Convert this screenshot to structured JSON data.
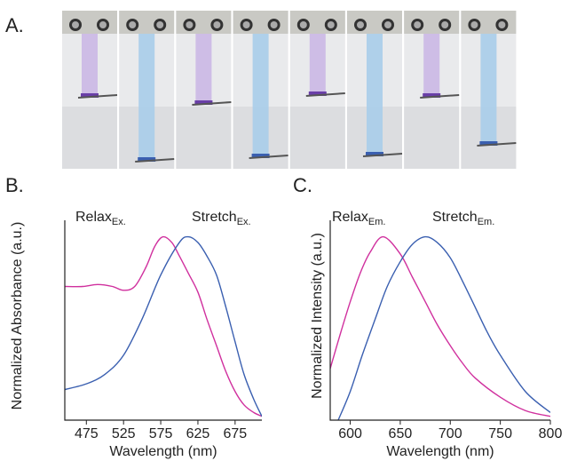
{
  "panel_a": {
    "label": "A."
  },
  "chart_data": [
    {
      "type": "line",
      "panel_label": "B.",
      "x_label": "Wavelength (nm)",
      "y_label": "Normalized Absorbance (a.u.)",
      "xlim": [
        446,
        711
      ],
      "ylim": [
        0,
        1
      ],
      "xticks": [
        475,
        525,
        575,
        625,
        675
      ],
      "annotations": [
        {
          "text": "Relax",
          "sub": "Ex."
        },
        {
          "text": "Stretch",
          "sub": "Ex."
        }
      ],
      "series": [
        {
          "color": "#d0309e",
          "x": [
            446,
            470,
            490,
            510,
            525,
            540,
            555,
            567,
            578,
            590,
            600,
            612,
            625,
            637,
            650,
            662,
            675,
            687,
            700,
            711
          ],
          "values": [
            0.7,
            0.7,
            0.71,
            0.7,
            0.68,
            0.7,
            0.8,
            0.91,
            0.96,
            0.93,
            0.86,
            0.77,
            0.67,
            0.53,
            0.39,
            0.26,
            0.15,
            0.08,
            0.04,
            0.02
          ]
        },
        {
          "color": "#3a5fb0",
          "x": [
            446,
            475,
            500,
            525,
            550,
            575,
            600,
            612,
            625,
            637,
            650,
            662,
            675,
            687,
            700,
            711
          ],
          "values": [
            0.16,
            0.19,
            0.24,
            0.34,
            0.53,
            0.76,
            0.93,
            0.96,
            0.93,
            0.86,
            0.76,
            0.6,
            0.41,
            0.24,
            0.11,
            0.02
          ]
        }
      ]
    },
    {
      "type": "line",
      "panel_label": "C.",
      "x_label": "Wavelength (nm)",
      "y_label": "Normalized Intensity (a.u.)",
      "xlim": [
        580,
        800
      ],
      "ylim": [
        0,
        1
      ],
      "xticks": [
        600,
        650,
        700,
        750,
        800
      ],
      "annotations": [
        {
          "text": "Relax",
          "sub": "Em."
        },
        {
          "text": "Stretch",
          "sub": "Em."
        }
      ],
      "series": [
        {
          "color": "#d0309e",
          "x": [
            580,
            590,
            600,
            610,
            620,
            633,
            650,
            662,
            675,
            687,
            700,
            712,
            725,
            750,
            775,
            800
          ],
          "values": [
            0.27,
            0.45,
            0.62,
            0.77,
            0.88,
            0.96,
            0.87,
            0.75,
            0.62,
            0.5,
            0.39,
            0.3,
            0.22,
            0.12,
            0.05,
            0.02
          ]
        },
        {
          "color": "#3a5fb0",
          "x": [
            588,
            600,
            612,
            625,
            637,
            650,
            662,
            675,
            687,
            700,
            712,
            725,
            737,
            750,
            775,
            800
          ],
          "values": [
            0.0,
            0.15,
            0.34,
            0.53,
            0.7,
            0.83,
            0.92,
            0.96,
            0.93,
            0.85,
            0.73,
            0.59,
            0.46,
            0.34,
            0.15,
            0.04
          ]
        }
      ]
    }
  ]
}
